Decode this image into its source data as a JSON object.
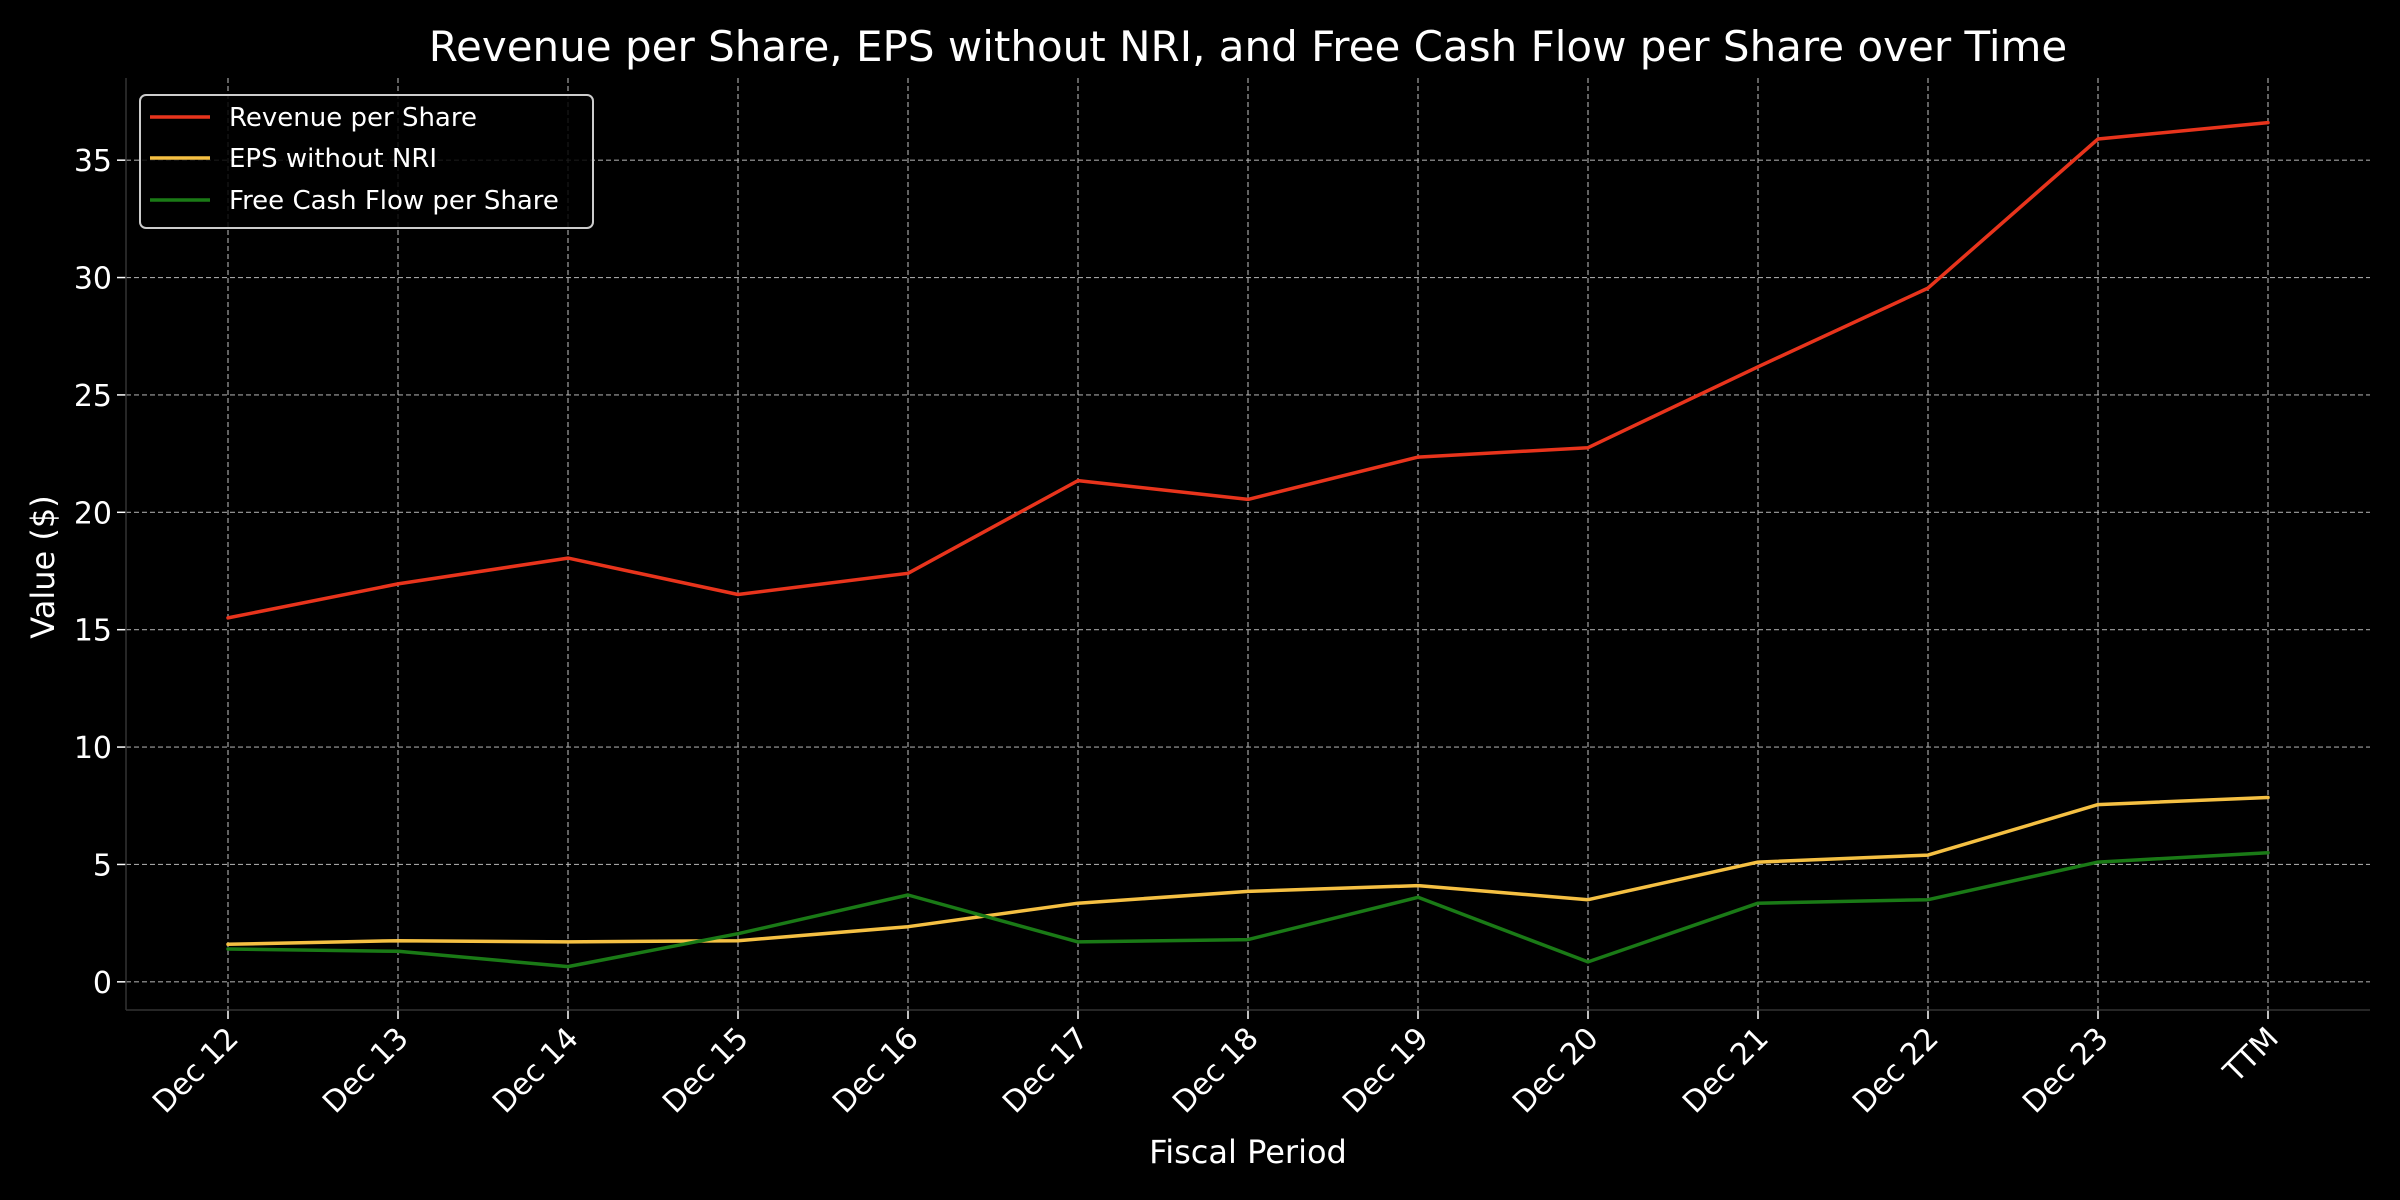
{
  "chart_data": {
    "type": "line",
    "title": "Revenue per Share, EPS without NRI, and Free Cash Flow per Share over Time",
    "xlabel": "Fiscal Period",
    "ylabel": "Value ($)",
    "categories": [
      "Dec 12",
      "Dec 13",
      "Dec 14",
      "Dec 15",
      "Dec 16",
      "Dec 17",
      "Dec 18",
      "Dec 19",
      "Dec 20",
      "Dec 21",
      "Dec 22",
      "Dec 23",
      "TTM"
    ],
    "ylim": [
      -1.2,
      38.5
    ],
    "yticks": [
      0,
      5,
      10,
      15,
      20,
      25,
      30,
      35
    ],
    "grid": true,
    "legend_position": "top-left",
    "background": "#000000",
    "series": [
      {
        "name": "Revenue per Share",
        "color": "#e8341c",
        "values": [
          15.5,
          16.95,
          18.05,
          16.5,
          17.4,
          21.35,
          20.55,
          22.35,
          22.75,
          26.2,
          29.55,
          35.9,
          36.6
        ]
      },
      {
        "name": "EPS without NRI",
        "color": "#f5c043",
        "values": [
          1.6,
          1.75,
          1.7,
          1.75,
          2.35,
          3.35,
          3.85,
          4.1,
          3.5,
          5.1,
          5.4,
          7.55,
          7.85
        ]
      },
      {
        "name": "Free Cash Flow per Share",
        "color": "#1a7a16",
        "values": [
          1.4,
          1.3,
          0.65,
          2.05,
          3.7,
          1.7,
          1.8,
          3.6,
          0.85,
          3.35,
          3.5,
          5.1,
          5.5
        ]
      }
    ]
  }
}
